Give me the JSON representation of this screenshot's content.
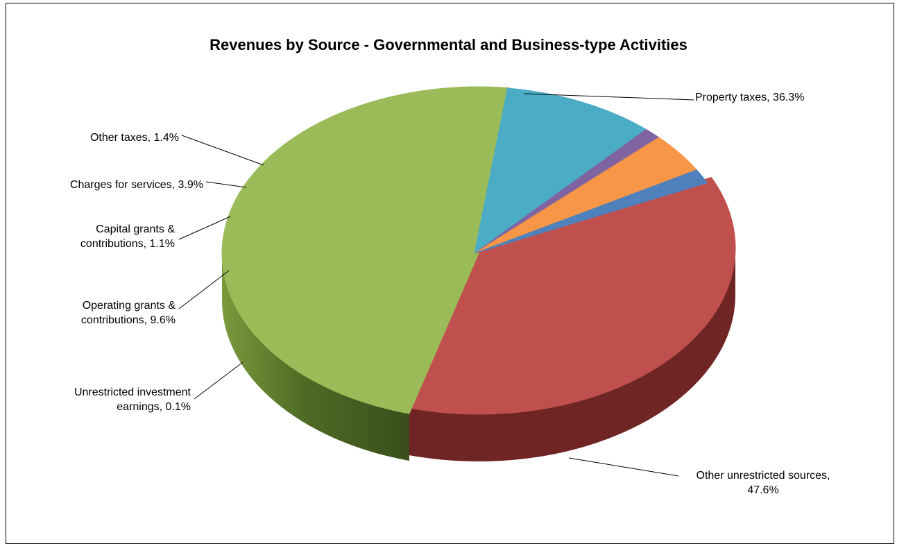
{
  "chart_data": {
    "type": "pie",
    "title": "Revenues by Source - Governmental and Business-type Activities",
    "slices": [
      {
        "label": "Property taxes, 36.3%",
        "value": 36.3,
        "color": "#c0504d",
        "side": "#6e2523"
      },
      {
        "label": "Other unrestricted sources, 47.6%",
        "value": 47.6,
        "color": "#9bbb59",
        "side": "#4f6a25"
      },
      {
        "label": "Unrestricted investment earnings, 0.1%",
        "value": 0.1,
        "color": "#c9c800",
        "side": "#8a8800"
      },
      {
        "label": "Operating grants & contributions, 9.6%",
        "value": 9.6,
        "color": "#4bacc6",
        "side": "#2d7f95"
      },
      {
        "label": "Capital grants & contributions, 1.1%",
        "value": 1.1,
        "color": "#8064a2",
        "side": "#4e3a66"
      },
      {
        "label": "Charges for services, 3.9%",
        "value": 3.9,
        "color": "#f79646",
        "side": "#a85a17"
      },
      {
        "label": "Other taxes, 1.4%",
        "value": 1.4,
        "color": "#4f81bd",
        "side": "#2b4f7a"
      }
    ]
  }
}
